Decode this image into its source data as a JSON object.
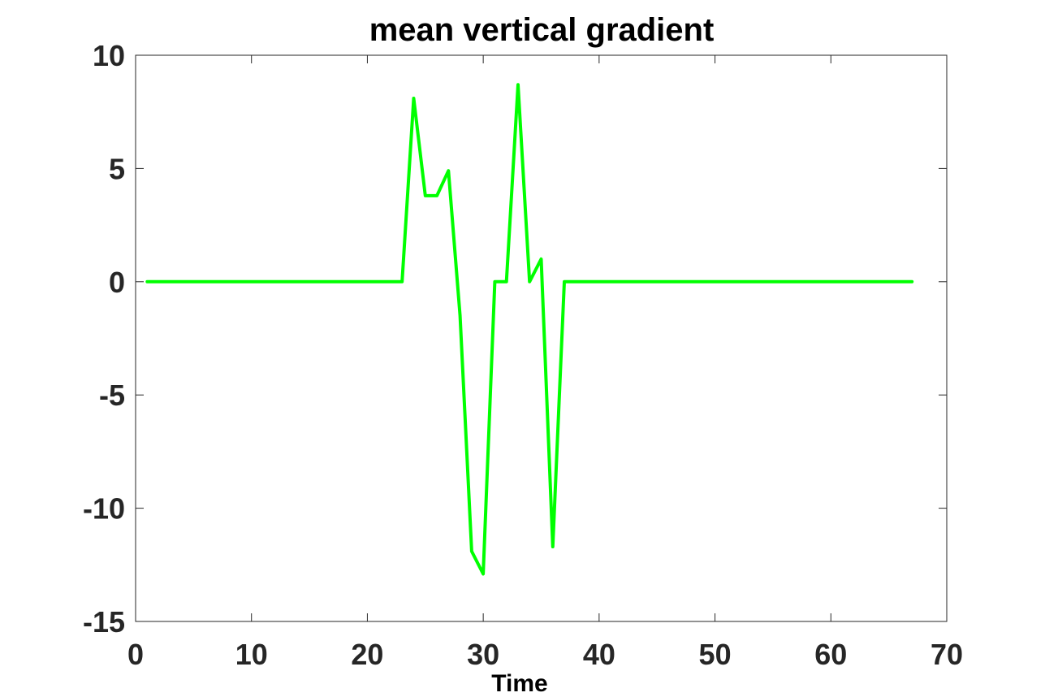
{
  "chart_data": {
    "type": "line",
    "title": "mean vertical gradient",
    "xlabel": "Time",
    "ylabel": "",
    "xlim": [
      0,
      70
    ],
    "ylim": [
      -15,
      10
    ],
    "xticks": [
      0,
      10,
      20,
      30,
      40,
      50,
      60,
      70
    ],
    "yticks": [
      -15,
      -10,
      -5,
      0,
      5,
      10
    ],
    "grid": false,
    "legend": "none",
    "series": [
      {
        "color": "#00ff00",
        "x": [
          1,
          23,
          24,
          25,
          26,
          27,
          28,
          29,
          30,
          31,
          32,
          33,
          34,
          35,
          36,
          37,
          67
        ],
        "y": [
          0,
          0,
          8.1,
          3.8,
          3.8,
          4.9,
          -1.5,
          -11.9,
          -12.9,
          0,
          0,
          8.7,
          0,
          1.0,
          -11.7,
          0,
          0
        ]
      }
    ]
  }
}
